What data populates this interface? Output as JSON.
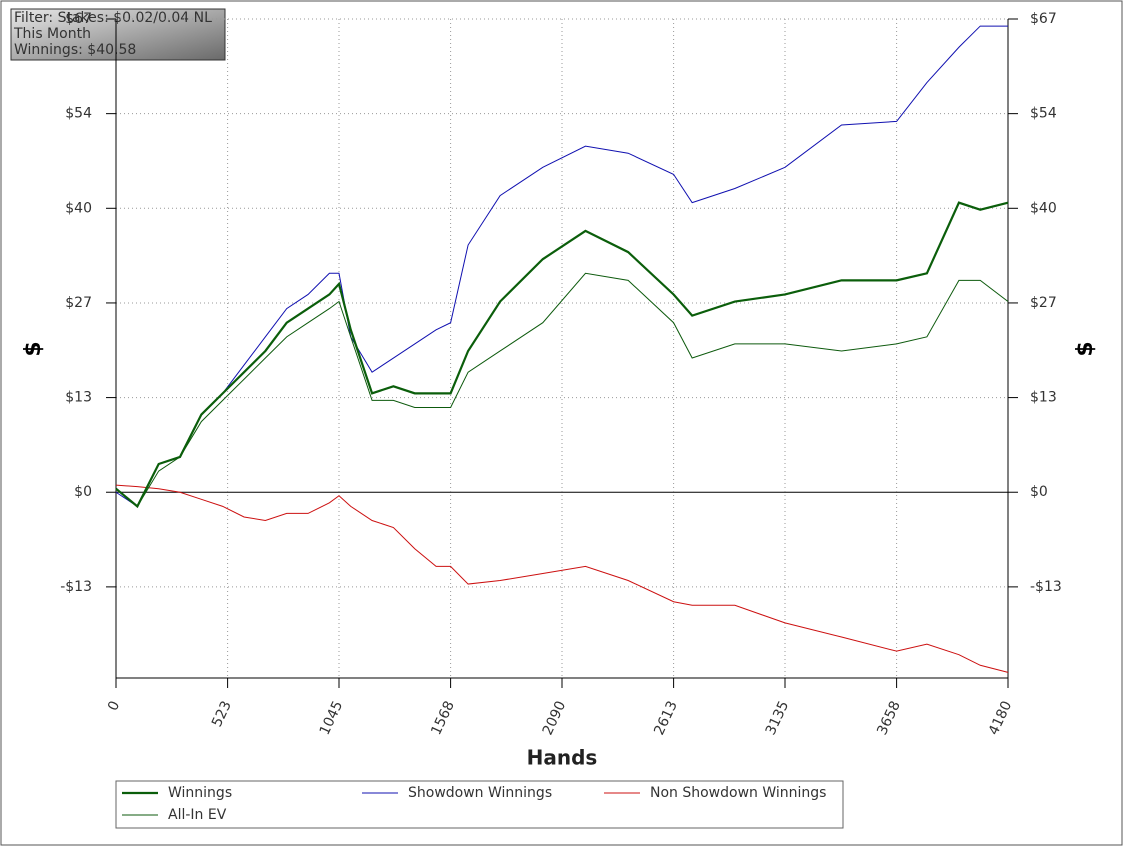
{
  "filter_box": {
    "lines": [
      "Filter: Stakes: $0.02/0.04 NL",
      "This Month",
      "Winnings: $40.58"
    ]
  },
  "chart_data": {
    "type": "line",
    "xlabel": "Hands",
    "ylabel": "$",
    "y2label": "$",
    "x": [
      0,
      100,
      200,
      300,
      400,
      500,
      600,
      700,
      800,
      900,
      1000,
      1045,
      1100,
      1200,
      1300,
      1400,
      1500,
      1568,
      1650,
      1800,
      2000,
      2200,
      2400,
      2613,
      2700,
      2900,
      3135,
      3400,
      3658,
      3800,
      3950,
      4050,
      4180
    ],
    "series": [
      {
        "name": "Winnings",
        "color": "#0b5e0b",
        "width": 2.2,
        "values": [
          0.5,
          -2,
          4,
          5,
          11,
          14,
          17,
          20,
          24,
          26,
          28,
          29.5,
          23,
          14,
          15,
          14,
          14,
          14,
          20,
          27,
          33,
          37,
          34,
          28,
          25,
          27,
          28,
          30,
          30,
          31,
          41,
          40,
          41
        ]
      },
      {
        "name": "All-In EV",
        "color": "#0d5a0d",
        "width": 1,
        "values": [
          0.5,
          -2,
          3,
          5,
          10,
          13,
          16,
          19,
          22,
          24,
          26,
          27,
          22,
          13,
          13,
          12,
          12,
          12,
          17,
          20,
          24,
          31,
          30,
          24,
          19,
          21,
          21,
          20,
          21,
          22,
          30,
          30,
          27
        ]
      },
      {
        "name": "Showdown Winnings",
        "color": "#1010b0",
        "width": 1,
        "values": [
          0,
          -2,
          4,
          5,
          11,
          14,
          18,
          22,
          26,
          28,
          31,
          31,
          22,
          17,
          19,
          21,
          23,
          24,
          35,
          42,
          46,
          49,
          48,
          45,
          41,
          43,
          46,
          52,
          52.5,
          58,
          63,
          66,
          66
        ]
      },
      {
        "name": "Non Showdown Winnings",
        "color": "#cc1010",
        "width": 1,
        "values": [
          1,
          0.8,
          0.5,
          0,
          -1,
          -2,
          -3.5,
          -4,
          -3,
          -3,
          -1.5,
          -0.5,
          -2,
          -4,
          -5,
          -8,
          -10.5,
          -10.5,
          -13,
          -12.5,
          -11.5,
          -10.5,
          -12.5,
          -15.5,
          -16,
          -16,
          -18.5,
          -20.5,
          -22.5,
          -21.5,
          -23,
          -24.5,
          -25.5
        ]
      }
    ],
    "xlim": [
      0,
      4180
    ],
    "xticks": [
      0,
      523,
      1045,
      1568,
      2090,
      2613,
      3135,
      3658,
      4180
    ],
    "ylim": [
      -26.3,
      67
    ],
    "yticks": [
      {
        "value": -13.4,
        "label": "-$13"
      },
      {
        "value": 0,
        "label": "$0"
      },
      {
        "value": 13.4,
        "label": "$13"
      },
      {
        "value": 26.8,
        "label": "$27"
      },
      {
        "value": 40.2,
        "label": "$40"
      },
      {
        "value": 53.6,
        "label": "$54"
      },
      {
        "value": 67,
        "label": "$67"
      }
    ],
    "y2lim": [
      -26.3,
      67
    ],
    "y2ticks": [
      {
        "value": -13.4,
        "label": "-$13"
      },
      {
        "value": 0,
        "label": "$0"
      },
      {
        "value": 13.4,
        "label": "$13"
      },
      {
        "value": 26.8,
        "label": "$27"
      },
      {
        "value": 40.2,
        "label": "$40"
      },
      {
        "value": 53.6,
        "label": "$54"
      },
      {
        "value": 67,
        "label": "$67"
      }
    ],
    "grid": true
  }
}
